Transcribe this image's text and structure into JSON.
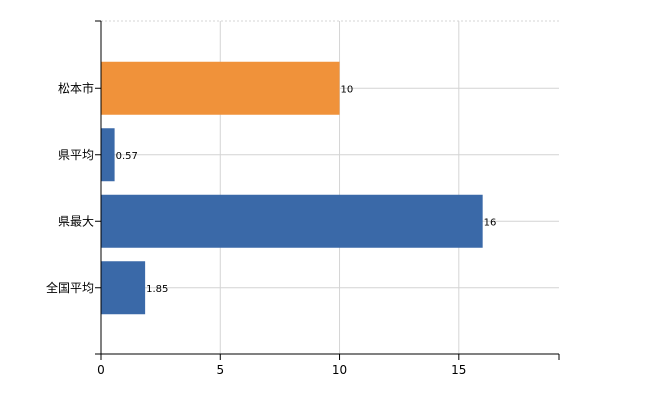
{
  "chart_data": {
    "type": "bar",
    "orientation": "horizontal",
    "title": "",
    "xlabel": "",
    "ylabel": "",
    "categories": [
      "松本市",
      "県平均",
      "県最大",
      "全国平均"
    ],
    "values": [
      10,
      0.57,
      16,
      1.85
    ],
    "value_labels": [
      "10",
      "0.57",
      "16",
      "1.85"
    ],
    "bar_colors": [
      "#f0923a",
      "#3a69a8",
      "#3a69a8",
      "#3a69a8"
    ],
    "xlim": [
      0,
      19.2
    ],
    "x_ticks": [
      0,
      5,
      10,
      15
    ],
    "x_tick_labels": [
      "0",
      "5",
      "10",
      "15"
    ],
    "grid": true,
    "legend": "none"
  }
}
